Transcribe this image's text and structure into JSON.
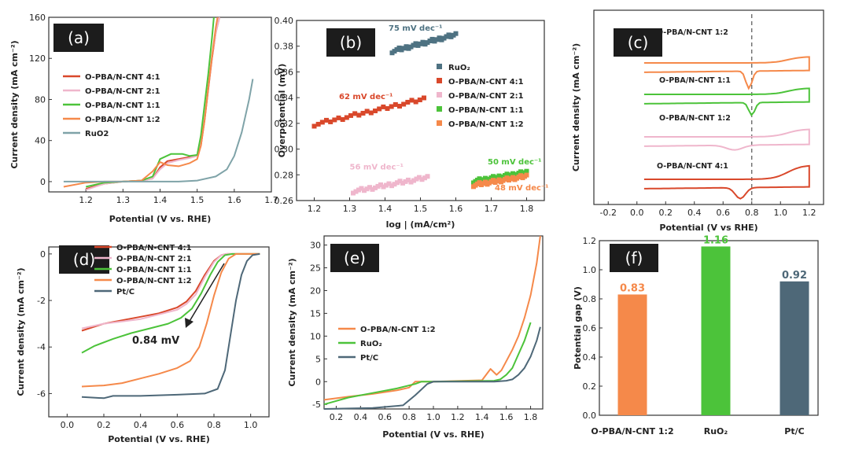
{
  "colors": {
    "c41": "#d9482b",
    "c21": "#efb6cc",
    "c11": "#4cc33a",
    "c12": "#f5894a",
    "ruo2": "#7fa3a8",
    "ruo2_dark": "#4e7282",
    "ptc": "#4e6878",
    "ptc_light": "#5b7282",
    "label_bg": "#1c1c1c",
    "frame": "#333333",
    "dash": "#555555",
    "arrow": "#222222"
  },
  "chart_data": [
    {
      "panel": "(a)",
      "type": "line",
      "xlabel": "Potential (V vs. RHE)",
      "ylabel": "Current density (mA cm⁻²)",
      "xlim": [
        1.1,
        1.7
      ],
      "ylim": [
        -10,
        160
      ],
      "xticks": [
        1.2,
        1.3,
        1.4,
        1.5,
        1.6,
        1.7
      ],
      "yticks": [
        0,
        40,
        80,
        120,
        160
      ],
      "series": [
        {
          "name": "O-PBA/N-CNT 4:1",
          "color": "c41",
          "x": [
            1.2,
            1.25,
            1.3,
            1.35,
            1.38,
            1.4,
            1.42,
            1.45,
            1.48,
            1.5,
            1.51,
            1.52,
            1.53,
            1.54,
            1.55,
            1.56
          ],
          "y": [
            -7,
            -2,
            0,
            1,
            3,
            14,
            20,
            22,
            24,
            25,
            35,
            60,
            90,
            120,
            145,
            160
          ]
        },
        {
          "name": "O-PBA/N-CNT 2:1",
          "color": "c21",
          "x": [
            1.2,
            1.25,
            1.3,
            1.35,
            1.38,
            1.4,
            1.42,
            1.45,
            1.48,
            1.5,
            1.51,
            1.52,
            1.53,
            1.54,
            1.55,
            1.56
          ],
          "y": [
            -8,
            -2,
            0,
            1,
            3,
            12,
            18,
            21,
            23,
            25,
            38,
            62,
            92,
            122,
            145,
            160
          ]
        },
        {
          "name": "O-PBA/N-CNT 1:1",
          "color": "c11",
          "x": [
            1.2,
            1.25,
            1.3,
            1.35,
            1.38,
            1.4,
            1.43,
            1.46,
            1.48,
            1.5,
            1.51,
            1.52,
            1.53,
            1.54,
            1.545
          ],
          "y": [
            -5,
            -1,
            0,
            1,
            5,
            22,
            27,
            27,
            25,
            26,
            45,
            75,
            105,
            140,
            160
          ]
        },
        {
          "name": "O-PBA/N-CNT 1:2",
          "color": "c12",
          "x": [
            1.14,
            1.2,
            1.25,
            1.3,
            1.35,
            1.38,
            1.4,
            1.42,
            1.45,
            1.48,
            1.5,
            1.51,
            1.52,
            1.53,
            1.54,
            1.55,
            1.555
          ],
          "y": [
            -5,
            -1,
            0,
            0,
            1,
            10,
            19,
            16,
            15,
            18,
            22,
            35,
            60,
            92,
            122,
            150,
            160
          ]
        },
        {
          "name": "RuO2",
          "color": "ruo2",
          "x": [
            1.14,
            1.3,
            1.45,
            1.5,
            1.55,
            1.58,
            1.6,
            1.62,
            1.64,
            1.65
          ],
          "y": [
            0,
            0,
            0,
            1,
            5,
            12,
            25,
            48,
            80,
            100
          ]
        }
      ]
    },
    {
      "panel": "(b)",
      "type": "scatter",
      "xlabel": "log | (mA/cm²)",
      "ylabel": "Overpotential (mV)",
      "xlim": [
        1.15,
        1.85
      ],
      "ylim": [
        0.26,
        0.4
      ],
      "xticks": [
        1.2,
        1.3,
        1.4,
        1.5,
        1.6,
        1.7,
        1.8
      ],
      "yticks": [
        0.26,
        0.28,
        0.3,
        0.32,
        0.34,
        0.36,
        0.38,
        0.4
      ],
      "series": [
        {
          "name": "RuO₂",
          "color": "ruo2_dark",
          "x0": 1.42,
          "x1": 1.6,
          "y0": 0.376,
          "y1": 0.389
        },
        {
          "name": "O-PBA/N-CNT 4:1",
          "color": "c41",
          "x0": 1.2,
          "x1": 1.51,
          "y0": 0.319,
          "y1": 0.339
        },
        {
          "name": "O-PBA/N-CNT 2:1",
          "color": "c21",
          "x0": 1.31,
          "x1": 1.52,
          "y0": 0.267,
          "y1": 0.278
        },
        {
          "name": "O-PBA/N-CNT 1:1",
          "color": "c11",
          "x0": 1.65,
          "x1": 1.8,
          "y0": 0.275,
          "y1": 0.282
        },
        {
          "name": "O-PBA/N-CNT 1:2",
          "color": "c12",
          "x0": 1.65,
          "x1": 1.8,
          "y0": 0.272,
          "y1": 0.279
        }
      ],
      "annotations": [
        {
          "text": "75 mV dec⁻¹",
          "color": "ruo2_dark",
          "x": 1.41,
          "y": 0.392
        },
        {
          "text": "62 mV dec⁻¹",
          "color": "c41",
          "x": 1.27,
          "y": 0.339
        },
        {
          "text": "56 mV dec⁻¹",
          "color": "c21",
          "x": 1.3,
          "y": 0.284
        },
        {
          "text": "50 mV dec⁻¹",
          "color": "c11",
          "x": 1.69,
          "y": 0.288
        },
        {
          "text": "48 mV dec⁻¹",
          "color": "c12",
          "x": 1.71,
          "y": 0.268
        }
      ]
    },
    {
      "panel": "(c)",
      "type": "line",
      "xlabel": "Potential (V vs RHE)",
      "ylabel": "Current density (mA cm⁻²)",
      "xlim": [
        -0.3,
        1.3
      ],
      "xticks": [
        -0.2,
        0.0,
        0.2,
        0.4,
        0.6,
        0.8,
        1.0,
        1.2
      ],
      "dashed_x": 0.8,
      "curves": [
        {
          "name": "O-PBA/N-CNT 1:2",
          "color": "c12",
          "base": 88,
          "peak": 0.78,
          "depth": 22,
          "width": 0.03,
          "rise": 8
        },
        {
          "name": "O-PBA/N-CNT 1:1",
          "color": "c11",
          "base": 128,
          "peak": 0.8,
          "depth": 16,
          "width": 0.03,
          "rise": 8
        },
        {
          "name": "O-PBA/N-CNT 1:2",
          "color": "c21",
          "base": 182,
          "peak": 0.68,
          "depth": 6,
          "width": 0.08,
          "rise": 10
        },
        {
          "name": "O-PBA/N-CNT 4:1",
          "color": "c41",
          "base": 236,
          "peak": 0.72,
          "depth": 14,
          "width": 0.05,
          "rise": 18
        }
      ]
    },
    {
      "panel": "(d)",
      "type": "line",
      "xlabel": "Potential (V vs. RHE)",
      "ylabel": "Current density (mA cm⁻²)",
      "xlim": [
        -0.1,
        1.1
      ],
      "ylim": [
        -7,
        0.3
      ],
      "xticks": [
        0.0,
        0.2,
        0.4,
        0.6,
        0.8,
        1.0
      ],
      "yticks": [
        0,
        -2,
        -4,
        -6
      ],
      "annotation": "0.84 mV",
      "series": [
        {
          "name": "O-PBA/N-CNT 4:1",
          "color": "c41",
          "x": [
            0.08,
            0.2,
            0.3,
            0.4,
            0.5,
            0.6,
            0.65,
            0.7,
            0.75,
            0.8,
            0.84,
            0.87,
            1.05
          ],
          "y": [
            -3.3,
            -3.0,
            -2.85,
            -2.7,
            -2.55,
            -2.3,
            -2.05,
            -1.6,
            -0.9,
            -0.3,
            -0.05,
            0,
            0
          ]
        },
        {
          "name": "O-PBA/N-CNT 2:1",
          "color": "c21",
          "x": [
            0.08,
            0.2,
            0.3,
            0.4,
            0.5,
            0.6,
            0.65,
            0.7,
            0.75,
            0.8,
            0.84,
            0.87,
            1.05
          ],
          "y": [
            -3.2,
            -3.0,
            -2.9,
            -2.8,
            -2.6,
            -2.4,
            -2.15,
            -1.75,
            -1.0,
            -0.35,
            -0.05,
            0,
            0
          ]
        },
        {
          "name": "O-PBA/N-CNT 1:1",
          "color": "c11",
          "x": [
            0.08,
            0.15,
            0.25,
            0.35,
            0.45,
            0.55,
            0.62,
            0.68,
            0.73,
            0.78,
            0.82,
            0.86,
            0.9,
            1.05
          ],
          "y": [
            -4.25,
            -3.95,
            -3.65,
            -3.4,
            -3.2,
            -3.0,
            -2.75,
            -2.35,
            -1.7,
            -0.9,
            -0.35,
            -0.05,
            0,
            0
          ]
        },
        {
          "name": "O-PBA/N-CNT 1:2",
          "color": "c12",
          "x": [
            0.08,
            0.2,
            0.3,
            0.4,
            0.5,
            0.6,
            0.67,
            0.72,
            0.76,
            0.8,
            0.84,
            0.88,
            0.92,
            1.05
          ],
          "y": [
            -5.7,
            -5.65,
            -5.55,
            -5.35,
            -5.15,
            -4.9,
            -4.6,
            -4.0,
            -3.0,
            -1.8,
            -0.8,
            -0.2,
            0,
            0
          ]
        },
        {
          "name": "Pt/C",
          "color": "ptc",
          "x": [
            0.08,
            0.2,
            0.25,
            0.4,
            0.6,
            0.75,
            0.82,
            0.86,
            0.89,
            0.92,
            0.95,
            0.98,
            1.01,
            1.05
          ],
          "y": [
            -6.15,
            -6.2,
            -6.1,
            -6.1,
            -6.05,
            -6.0,
            -5.8,
            -5.0,
            -3.5,
            -2.0,
            -0.9,
            -0.3,
            -0.05,
            0
          ]
        }
      ]
    },
    {
      "panel": "(e)",
      "type": "line",
      "xlabel": "Potential (V vs. RHE)",
      "ylabel": "Current density (mA cm⁻²)",
      "xlim": [
        0.1,
        1.9
      ],
      "ylim": [
        -6,
        32
      ],
      "xticks": [
        0.2,
        0.4,
        0.6,
        0.8,
        1.0,
        1.2,
        1.4,
        1.6,
        1.8
      ],
      "yticks": [
        -5,
        0,
        5,
        10,
        15,
        20,
        25,
        30
      ],
      "series": [
        {
          "name": "O-PBA/N-CNT 1:2",
          "color": "c12",
          "x": [
            0.1,
            0.3,
            0.5,
            0.7,
            0.8,
            0.85,
            1.0,
            1.4,
            1.47,
            1.52,
            1.56,
            1.6,
            1.65,
            1.7,
            1.75,
            1.8,
            1.85,
            1.88
          ],
          "y": [
            -4,
            -3.3,
            -2.7,
            -1.9,
            -1.3,
            0,
            0,
            0.3,
            2.8,
            1.5,
            2.5,
            4.5,
            7,
            10,
            14,
            19,
            26,
            32
          ]
        },
        {
          "name": "RuO₂",
          "color": "c11",
          "x": [
            0.1,
            0.3,
            0.5,
            0.7,
            0.85,
            0.9,
            1.0,
            1.5,
            1.55,
            1.6,
            1.65,
            1.7,
            1.75,
            1.8
          ],
          "y": [
            -5,
            -3.5,
            -2.5,
            -1.5,
            -0.5,
            0,
            0,
            0.2,
            0.5,
            1.5,
            3,
            6,
            9,
            13
          ]
        },
        {
          "name": "Pt/C",
          "color": "ptc",
          "x": [
            0.1,
            0.5,
            0.75,
            0.85,
            0.95,
            1.0,
            1.5,
            1.6,
            1.65,
            1.7,
            1.75,
            1.8,
            1.85,
            1.88
          ],
          "y": [
            -6,
            -5.8,
            -5.2,
            -3,
            -0.5,
            0,
            0,
            0.2,
            0.5,
            1.5,
            3,
            5.5,
            9,
            12
          ]
        }
      ]
    },
    {
      "panel": "(f)",
      "type": "bar",
      "ylabel": "Potential gap (V)",
      "ylim": [
        0,
        1.2
      ],
      "yticks": [
        0.0,
        0.2,
        0.4,
        0.6,
        0.8,
        1.0,
        1.2
      ],
      "categories": [
        "O-PBA/N-CNT 1:2",
        "RuO₂",
        "Pt/C"
      ],
      "values": [
        0.83,
        1.16,
        0.92
      ],
      "value_labels": [
        "0.83",
        "1.16",
        "0.92"
      ],
      "bar_colors": [
        "c12",
        "c11",
        "ptc"
      ]
    }
  ]
}
